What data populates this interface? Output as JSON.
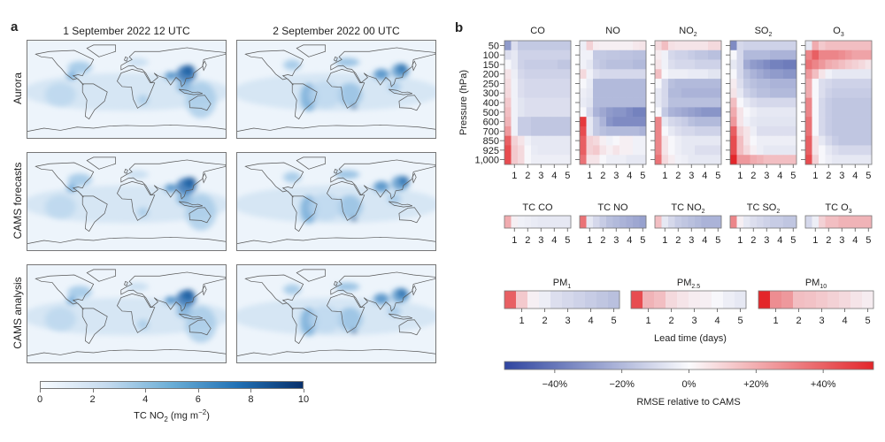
{
  "panel_a": {
    "label": "a",
    "columns": [
      "1 September 2022 12 UTC",
      "2 September 2022 00 UTC"
    ],
    "rows": [
      "Aurora",
      "CAMS forecasts",
      "CAMS analysis"
    ],
    "colorbar": {
      "ticks": [
        "0",
        "2",
        "4",
        "6",
        "8",
        "10"
      ],
      "label_base": "TC NO",
      "label_sub": "2",
      "label_unit": " (mg m",
      "label_sup": "−2",
      "label_close": ")",
      "colors": [
        "#f7fbff",
        "#08306b"
      ]
    }
  },
  "panel_b": {
    "label": "b",
    "ylabel": "Pressure (hPa)",
    "xlabel": "Lead time (days)",
    "colorbar": {
      "ticks": [
        "−40%",
        "−20%",
        "0%",
        "+20%",
        "+40%"
      ],
      "tick_values": [
        -40,
        -20,
        0,
        20,
        40
      ],
      "range": [
        -55,
        55
      ],
      "label": "RMSE relative to CAMS",
      "colors": {
        "negative": "#3a4ea3",
        "zero": "#f7f7fb",
        "positive": "#e3262a"
      }
    }
  },
  "chart_data": [
    {
      "type": "heatmap",
      "title": {
        "base": "CO",
        "sub": ""
      },
      "y": [
        "50",
        "100",
        "150",
        "200",
        "250",
        "300",
        "400",
        "500",
        "600",
        "700",
        "850",
        "925",
        "1,000"
      ],
      "x": [
        0.5,
        1,
        1.5,
        2,
        2.5,
        3,
        3.5,
        4,
        4.5,
        5
      ],
      "x_ticks": [
        "1",
        "2",
        "3",
        "4",
        "5"
      ],
      "values": [
        [
          -30,
          -8,
          -15,
          -15,
          -15,
          -15,
          -15,
          -15,
          -15,
          -15
        ],
        [
          -8,
          -5,
          -12,
          -12,
          -12,
          -12,
          -12,
          -12,
          -12,
          -12
        ],
        [
          0,
          -5,
          -12,
          -14,
          -14,
          -14,
          -14,
          -14,
          -16,
          -16
        ],
        [
          5,
          -3,
          -10,
          -12,
          -12,
          -12,
          -12,
          -12,
          -12,
          -12
        ],
        [
          7,
          -2,
          -8,
          -10,
          -10,
          -10,
          -10,
          -10,
          -10,
          -10
        ],
        [
          8,
          -2,
          -8,
          -10,
          -10,
          -10,
          -10,
          -10,
          -10,
          -10
        ],
        [
          12,
          -2,
          -6,
          -8,
          -8,
          -8,
          -8,
          -8,
          -8,
          -8
        ],
        [
          15,
          -2,
          -6,
          -8,
          -8,
          -8,
          -8,
          -8,
          -8,
          -8
        ],
        [
          18,
          -2,
          -14,
          -14,
          -16,
          -16,
          -16,
          -16,
          -16,
          -16
        ],
        [
          25,
          -2,
          -14,
          -14,
          -16,
          -16,
          -16,
          -16,
          -16,
          -16
        ],
        [
          40,
          10,
          5,
          -2,
          -5,
          -5,
          -5,
          -5,
          -5,
          -5
        ],
        [
          45,
          12,
          8,
          0,
          -4,
          -5,
          -5,
          -5,
          -5,
          -5
        ],
        [
          45,
          12,
          8,
          0,
          -3,
          -3,
          -3,
          -3,
          -3,
          -3
        ]
      ]
    },
    {
      "type": "heatmap",
      "title": {
        "base": "NO",
        "sub": ""
      },
      "y": [
        "50",
        "100",
        "150",
        "200",
        "250",
        "300",
        "400",
        "500",
        "600",
        "700",
        "850",
        "925",
        "1,000"
      ],
      "x": [
        0.5,
        1,
        1.5,
        2,
        2.5,
        3,
        3.5,
        4,
        4.5,
        5
      ],
      "x_ticks": [
        "1",
        "2",
        "3",
        "4",
        "5"
      ],
      "values": [
        [
          -3,
          10,
          3,
          2,
          2,
          2,
          2,
          2,
          4,
          5
        ],
        [
          -2,
          -2,
          -15,
          -15,
          -16,
          -16,
          -17,
          -17,
          -18,
          -18
        ],
        [
          -2,
          -5,
          -14,
          -16,
          -18,
          -18,
          -18,
          -18,
          -20,
          -20
        ],
        [
          8,
          -2,
          -8,
          -10,
          -10,
          -10,
          -10,
          -10,
          -10,
          -10
        ],
        [
          0,
          -4,
          -20,
          -20,
          -20,
          -20,
          -20,
          -20,
          -20,
          -20
        ],
        [
          -3,
          -5,
          -20,
          -20,
          -20,
          -20,
          -20,
          -20,
          -20,
          -20
        ],
        [
          -4,
          -6,
          -20,
          -20,
          -20,
          -20,
          -20,
          -20,
          -20,
          -20
        ],
        [
          0,
          -10,
          -22,
          -26,
          -30,
          -32,
          -32,
          -35,
          -38,
          -38
        ],
        [
          50,
          -5,
          -15,
          -22,
          -32,
          -35,
          -35,
          -35,
          -35,
          -35
        ],
        [
          45,
          -5,
          -15,
          -18,
          -20,
          -20,
          -20,
          -20,
          -20,
          -22
        ],
        [
          40,
          10,
          8,
          2,
          -2,
          0,
          2,
          2,
          -2,
          -2
        ],
        [
          40,
          10,
          12,
          5,
          2,
          5,
          2,
          2,
          -2,
          -2
        ],
        [
          35,
          5,
          5,
          0,
          -3,
          -3,
          -3,
          -5,
          -5,
          -5
        ]
      ]
    },
    {
      "type": "heatmap",
      "title": {
        "base": "NO",
        "sub": "2"
      },
      "y": [
        "50",
        "100",
        "150",
        "200",
        "250",
        "300",
        "400",
        "500",
        "600",
        "700",
        "850",
        "925",
        "1,000"
      ],
      "x": [
        0.5,
        1,
        1.5,
        2,
        2.5,
        3,
        3.5,
        4,
        4.5,
        5
      ],
      "x_ticks": [
        "1",
        "2",
        "3",
        "4",
        "5"
      ],
      "values": [
        [
          8,
          15,
          6,
          5,
          5,
          5,
          5,
          5,
          8,
          8
        ],
        [
          3,
          -2,
          -10,
          -12,
          -12,
          -14,
          -16,
          -16,
          -18,
          -18
        ],
        [
          5,
          -2,
          -8,
          -10,
          -10,
          -10,
          -12,
          -12,
          -12,
          -12
        ],
        [
          15,
          0,
          -3,
          -3,
          -3,
          -4,
          -4,
          -4,
          -6,
          -6
        ],
        [
          0,
          -10,
          -18,
          -20,
          -20,
          -20,
          -20,
          -20,
          -20,
          -20
        ],
        [
          -5,
          -10,
          -20,
          -20,
          -22,
          -22,
          -22,
          -22,
          -22,
          -22
        ],
        [
          -5,
          -10,
          -18,
          -18,
          -18,
          -18,
          -18,
          -18,
          -18,
          -18
        ],
        [
          0,
          -15,
          -22,
          -24,
          -26,
          -28,
          -30,
          -32,
          -32,
          -32
        ],
        [
          30,
          -5,
          -10,
          -12,
          -14,
          -18,
          -20,
          -20,
          -20,
          -20
        ],
        [
          30,
          0,
          -5,
          -8,
          -10,
          -10,
          -12,
          -12,
          -12,
          -12
        ],
        [
          30,
          5,
          0,
          -3,
          -5,
          -5,
          -5,
          -5,
          -5,
          -5
        ],
        [
          30,
          5,
          0,
          -3,
          -5,
          -5,
          -8,
          -8,
          -8,
          -8
        ],
        [
          35,
          8,
          3,
          -2,
          -3,
          -5,
          -5,
          -5,
          -5,
          -5
        ]
      ]
    },
    {
      "type": "heatmap",
      "title": {
        "base": "SO",
        "sub": "2"
      },
      "y": [
        "50",
        "100",
        "150",
        "200",
        "250",
        "300",
        "400",
        "500",
        "600",
        "700",
        "850",
        "925",
        "1,000"
      ],
      "x": [
        0.5,
        1,
        1.5,
        2,
        2.5,
        3,
        3.5,
        4,
        4.5,
        5
      ],
      "x_ticks": [
        "1",
        "2",
        "3",
        "4",
        "5"
      ],
      "values": [
        [
          -35,
          -10,
          -12,
          -12,
          -12,
          -12,
          -12,
          -12,
          -12,
          -12
        ],
        [
          0,
          -10,
          -20,
          -20,
          -20,
          -20,
          -22,
          -22,
          -22,
          -22
        ],
        [
          -5,
          -10,
          -25,
          -30,
          -32,
          -35,
          -38,
          -38,
          -40,
          -40
        ],
        [
          0,
          -10,
          -18,
          -22,
          -25,
          -28,
          -30,
          -30,
          -32,
          -32
        ],
        [
          3,
          -8,
          -15,
          -18,
          -20,
          -20,
          -22,
          -22,
          -22,
          -22
        ],
        [
          5,
          -5,
          -12,
          -15,
          -18,
          -18,
          -20,
          -20,
          -20,
          -20
        ],
        [
          15,
          0,
          -5,
          -8,
          -10,
          -10,
          -10,
          -10,
          -10,
          -10
        ],
        [
          20,
          5,
          0,
          -3,
          -5,
          -5,
          -5,
          -5,
          -5,
          -5
        ],
        [
          25,
          5,
          -2,
          -5,
          -6,
          -6,
          -6,
          -6,
          -6,
          -6
        ],
        [
          40,
          10,
          5,
          -3,
          -8,
          -8,
          -8,
          -8,
          -8,
          -8
        ],
        [
          45,
          15,
          5,
          0,
          -3,
          -3,
          -3,
          -3,
          -3,
          -3
        ],
        [
          45,
          15,
          8,
          2,
          -3,
          -5,
          -5,
          -5,
          -5,
          -5
        ],
        [
          55,
          25,
          25,
          20,
          18,
          15,
          15,
          15,
          15,
          15
        ]
      ]
    },
    {
      "type": "heatmap",
      "title": {
        "base": "O",
        "sub": "3"
      },
      "y": [
        "50",
        "100",
        "150",
        "200",
        "250",
        "300",
        "400",
        "500",
        "600",
        "700",
        "850",
        "925",
        "1,000"
      ],
      "x": [
        0.5,
        1,
        1.5,
        2,
        2.5,
        3,
        3.5,
        4,
        4.5,
        5
      ],
      "x_ticks": [
        "1",
        "2",
        "3",
        "4",
        "5"
      ],
      "values": [
        [
          -5,
          20,
          12,
          15,
          15,
          15,
          15,
          15,
          15,
          15
        ],
        [
          30,
          40,
          30,
          30,
          30,
          28,
          25,
          22,
          22,
          22
        ],
        [
          35,
          30,
          25,
          20,
          18,
          15,
          12,
          10,
          8,
          5
        ],
        [
          25,
          15,
          5,
          -2,
          -5,
          -5,
          -5,
          -5,
          -5,
          -5
        ],
        [
          20,
          0,
          -8,
          -10,
          -12,
          -12,
          -12,
          -12,
          -12,
          -12
        ],
        [
          20,
          0,
          -8,
          -12,
          -14,
          -14,
          -14,
          -14,
          -14,
          -14
        ],
        [
          30,
          0,
          -10,
          -14,
          -16,
          -16,
          -16,
          -16,
          -16,
          -16
        ],
        [
          30,
          0,
          -10,
          -14,
          -16,
          -16,
          -16,
          -16,
          -16,
          -16
        ],
        [
          35,
          0,
          -10,
          -14,
          -16,
          -16,
          -16,
          -16,
          -16,
          -16
        ],
        [
          35,
          0,
          -10,
          -14,
          -16,
          -16,
          -16,
          -16,
          -16,
          -16
        ],
        [
          40,
          5,
          -5,
          -10,
          -14,
          -16,
          -16,
          -16,
          -16,
          -16
        ],
        [
          40,
          5,
          0,
          -5,
          -8,
          -10,
          -10,
          -10,
          -10,
          -10
        ],
        [
          45,
          10,
          0,
          -3,
          -5,
          -5,
          -5,
          -5,
          -5,
          -5
        ]
      ]
    },
    {
      "type": "heatmap",
      "title": {
        "base": "TC CO",
        "sub": ""
      },
      "x": [
        0.5,
        1,
        1.5,
        2,
        2.5,
        3,
        3.5,
        4,
        4.5,
        5
      ],
      "x_ticks": [
        "1",
        "2",
        "3",
        "4",
        "5"
      ],
      "values": [
        [
          20,
          2,
          -2,
          -3,
          -4,
          -5,
          -5,
          -5,
          -5,
          -5
        ]
      ]
    },
    {
      "type": "heatmap",
      "title": {
        "base": "TC NO",
        "sub": ""
      },
      "x": [
        0.5,
        1,
        1.5,
        2,
        2.5,
        3,
        3.5,
        4,
        4.5,
        5
      ],
      "x_ticks": [
        "1",
        "2",
        "3",
        "4",
        "5"
      ],
      "values": [
        [
          35,
          -5,
          -10,
          -14,
          -18,
          -20,
          -22,
          -24,
          -26,
          -28
        ]
      ]
    },
    {
      "type": "heatmap",
      "title": {
        "base": "TC NO",
        "sub": "2"
      },
      "x": [
        0.5,
        1,
        1.5,
        2,
        2.5,
        3,
        3.5,
        4,
        4.5,
        5
      ],
      "x_ticks": [
        "1",
        "2",
        "3",
        "4",
        "5"
      ],
      "values": [
        [
          15,
          -5,
          -10,
          -14,
          -16,
          -18,
          -20,
          -22,
          -22,
          -22
        ]
      ]
    },
    {
      "type": "heatmap",
      "title": {
        "base": "TC SO",
        "sub": "2"
      },
      "x": [
        0.5,
        1,
        1.5,
        2,
        2.5,
        3,
        3.5,
        4,
        4.5,
        5
      ],
      "x_ticks": [
        "1",
        "2",
        "3",
        "4",
        "5"
      ],
      "values": [
        [
          30,
          2,
          -5,
          -8,
          -10,
          -12,
          -14,
          -14,
          -16,
          -16
        ]
      ]
    },
    {
      "type": "heatmap",
      "title": {
        "base": "TC O",
        "sub": "3"
      },
      "x": [
        0.5,
        1,
        1.5,
        2,
        2.5,
        3,
        3.5,
        4,
        4.5,
        5
      ],
      "x_ticks": [
        "1",
        "2",
        "3",
        "4",
        "5"
      ],
      "values": [
        [
          -10,
          -3,
          10,
          15,
          15,
          18,
          18,
          18,
          18,
          18
        ]
      ]
    },
    {
      "type": "heatmap",
      "title": {
        "base": "PM",
        "sub": "1"
      },
      "x": [
        0.5,
        1,
        1.5,
        2,
        2.5,
        3,
        3.5,
        4,
        4.5,
        5
      ],
      "x_ticks": [
        "1",
        "2",
        "3",
        "4",
        "5"
      ],
      "values": [
        [
          40,
          12,
          2,
          -3,
          -8,
          -10,
          -12,
          -14,
          -16,
          -18
        ]
      ]
    },
    {
      "type": "heatmap",
      "title": {
        "base": "PM",
        "sub": "2.5"
      },
      "x": [
        0.5,
        1,
        1.5,
        2,
        2.5,
        3,
        3.5,
        4,
        4.5,
        5
      ],
      "x_ticks": [
        "1",
        "2",
        "3",
        "4",
        "5"
      ],
      "values": [
        [
          45,
          18,
          15,
          8,
          5,
          3,
          2,
          0,
          -3,
          -5
        ]
      ]
    },
    {
      "type": "heatmap",
      "title": {
        "base": "PM",
        "sub": "10"
      },
      "x": [
        0.5,
        1,
        1.5,
        2,
        2.5,
        3,
        3.5,
        4,
        4.5,
        5
      ],
      "x_ticks": [
        "1",
        "2",
        "3",
        "4",
        "5"
      ],
      "values": [
        [
          55,
          28,
          25,
          15,
          14,
          12,
          10,
          8,
          5,
          3
        ]
      ]
    }
  ]
}
